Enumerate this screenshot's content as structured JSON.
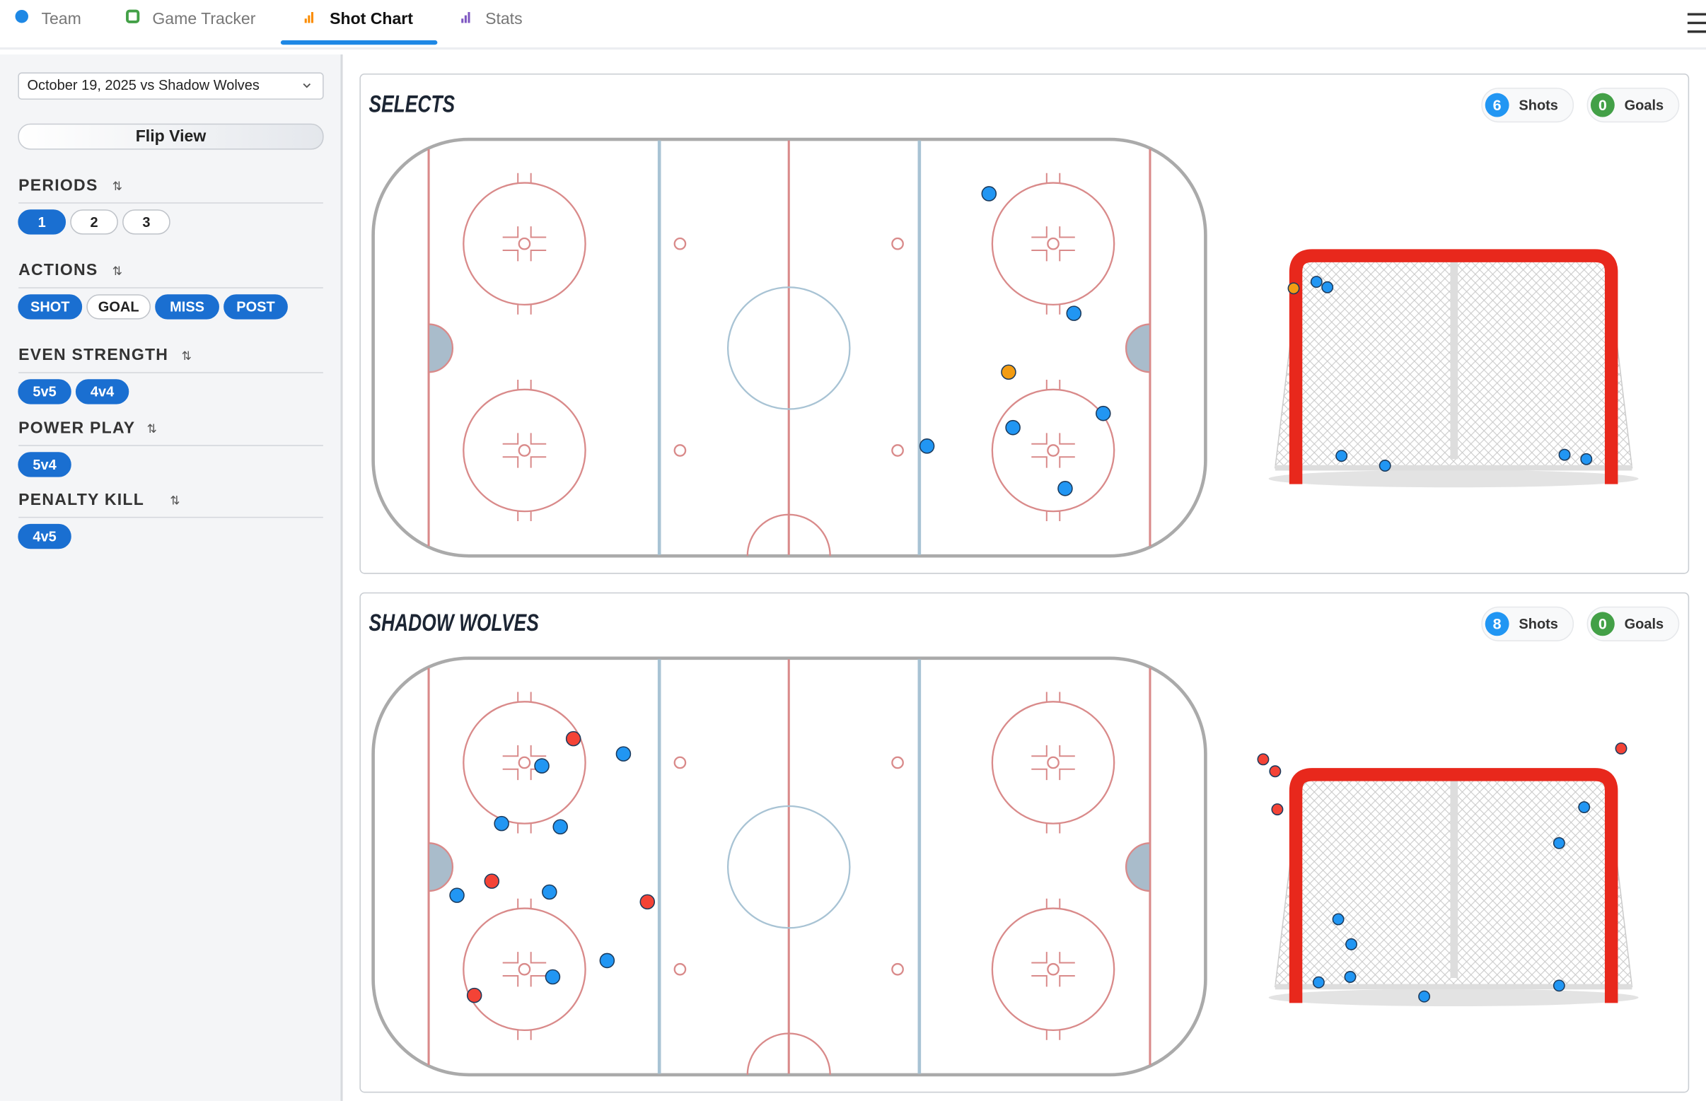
{
  "tabs": [
    {
      "label": "Team"
    },
    {
      "label": "Game Tracker"
    },
    {
      "label": "Shot Chart",
      "active": true
    },
    {
      "label": "Stats"
    }
  ],
  "sidebar": {
    "game_select": "October 19, 2025 vs Shadow Wolves",
    "flip_button": "Flip View",
    "filters": [
      {
        "title": "PERIODS",
        "options": [
          {
            "label": "1",
            "on": true
          },
          {
            "label": "2",
            "on": false
          },
          {
            "label": "3",
            "on": false
          }
        ]
      },
      {
        "title": "ACTIONS",
        "options": [
          {
            "label": "SHOT",
            "on": true
          },
          {
            "label": "GOAL",
            "on": false
          },
          {
            "label": "MISS",
            "on": true
          },
          {
            "label": "POST",
            "on": true
          }
        ]
      },
      {
        "title": "EVEN STRENGTH",
        "options": [
          {
            "label": "5v5",
            "on": true
          },
          {
            "label": "4v4",
            "on": true
          }
        ]
      },
      {
        "title": "POWER PLAY",
        "options": [
          {
            "label": "5v4",
            "on": true
          }
        ]
      },
      {
        "title": "PENALTY KILL",
        "options": [
          {
            "label": "4v5",
            "on": true
          }
        ]
      }
    ]
  },
  "panels": [
    {
      "team": "SELECTS",
      "shots": 6,
      "shots_label": "Shots",
      "goals": 0,
      "goals_label": "Goals"
    },
    {
      "team": "SHADOW WOLVES",
      "shots": 8,
      "shots_label": "Shots",
      "goals": 0,
      "goals_label": "Goals"
    }
  ]
}
